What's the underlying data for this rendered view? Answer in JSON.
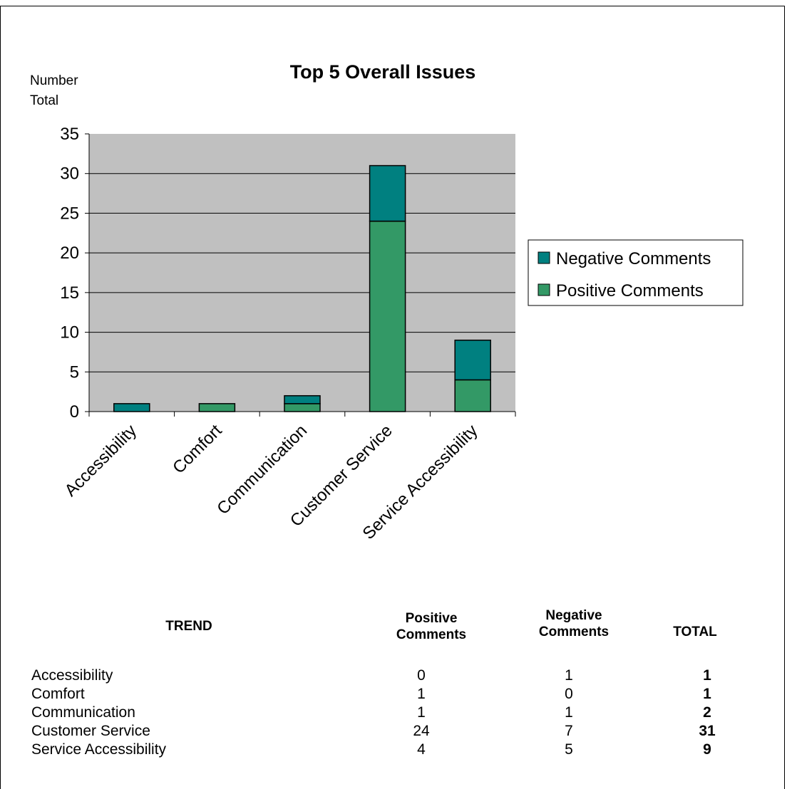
{
  "chart_data": {
    "type": "bar",
    "stacked": true,
    "title": "Top 5 Overall Issues",
    "ylabel_lines": [
      "Number",
      "Total"
    ],
    "xlabel": "",
    "categories": [
      "Accessibility",
      "Comfort",
      "Communication",
      "Customer Service",
      "Service Accessibility"
    ],
    "series": [
      {
        "name": "Positive Comments",
        "color": "#339966",
        "values": [
          0,
          1,
          1,
          24,
          4
        ]
      },
      {
        "name": "Negative Comments",
        "color": "#008080",
        "values": [
          1,
          0,
          1,
          7,
          5
        ]
      }
    ],
    "ylim": [
      0,
      35
    ],
    "yticks": [
      0,
      5,
      10,
      15,
      20,
      25,
      30,
      35
    ],
    "grid": true,
    "plot_background": "#c0c0c0",
    "legend_position": "right",
    "legend_order": [
      "Negative Comments",
      "Positive Comments"
    ]
  },
  "table": {
    "headers": {
      "trend": "TREND",
      "positive_line1": "Positive",
      "positive_line2": "Comments",
      "negative_line1": "Negative",
      "negative_line2": "Comments",
      "total": "TOTAL"
    },
    "rows": [
      {
        "trend": "Accessibility",
        "positive": "0",
        "negative": "1",
        "total": "1"
      },
      {
        "trend": "Comfort",
        "positive": "1",
        "negative": "0",
        "total": "1"
      },
      {
        "trend": "Communication",
        "positive": "1",
        "negative": "1",
        "total": "2"
      },
      {
        "trend": "Customer Service",
        "positive": "24",
        "negative": "7",
        "total": "31"
      },
      {
        "trend": "Service Accessibility",
        "positive": "4",
        "negative": "5",
        "total": "9"
      }
    ]
  }
}
